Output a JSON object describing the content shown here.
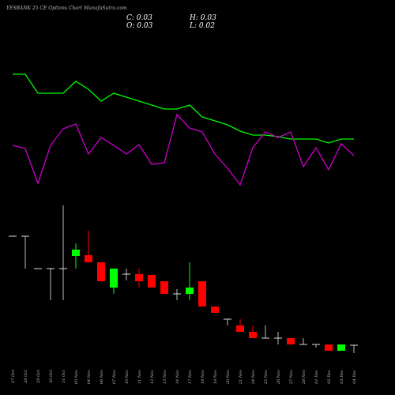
{
  "chart_data": {
    "type": "candlestick",
    "title": "YESBANK 25  CE Options  Chart MunafaSutra.com",
    "summary": [
      {
        "label": "C:",
        "value": 0.03
      },
      {
        "label": "H:",
        "value": 0.03
      },
      {
        "label": "O:",
        "value": 0.03
      },
      {
        "label": "L:",
        "value": 0.02
      }
    ],
    "x": [
      "27 Oct",
      "28 Oct",
      "29 Oct",
      "30 Oct",
      "31 Oct",
      "03 Nov",
      "04 Nov",
      "06 Nov",
      "07 Nov",
      "10 Nov",
      "11 Nov",
      "12 Nov",
      "13 Nov",
      "14 Nov",
      "17 Nov",
      "18 Nov",
      "19 Nov",
      "20 Nov",
      "21 Nov",
      "24 Nov",
      "25 Nov",
      "26 Nov",
      "27 Nov",
      "28 Nov",
      "01 Dec",
      "02 Dec",
      "03 Dec",
      "04 Dec"
    ],
    "open": [
      0.168,
      0.168,
      0.127,
      0.127,
      0.127,
      0.143,
      0.144,
      0.135,
      0.103,
      0.12,
      0.12,
      0.119,
      0.111,
      0.095,
      0.095,
      0.111,
      0.079,
      0.063,
      0.055,
      0.047,
      0.039,
      0.039,
      0.039,
      0.031,
      0.031,
      0.031,
      0.023,
      0.03
    ],
    "high": [
      0.168,
      0.168,
      0.127,
      0.127,
      0.207,
      0.159,
      0.175,
      0.135,
      0.127,
      0.127,
      0.127,
      0.119,
      0.111,
      0.101,
      0.135,
      0.111,
      0.079,
      0.063,
      0.063,
      0.055,
      0.055,
      0.047,
      0.039,
      0.039,
      0.031,
      0.031,
      0.031,
      0.03
    ],
    "low": [
      0.168,
      0.127,
      0.127,
      0.087,
      0.087,
      0.127,
      0.135,
      0.111,
      0.095,
      0.112,
      0.103,
      0.103,
      0.095,
      0.087,
      0.087,
      0.079,
      0.071,
      0.055,
      0.047,
      0.039,
      0.039,
      0.031,
      0.031,
      0.031,
      0.027,
      0.023,
      0.023,
      0.02
    ],
    "close": [
      0.168,
      0.168,
      0.127,
      0.127,
      0.127,
      0.151,
      0.135,
      0.111,
      0.127,
      0.12,
      0.111,
      0.103,
      0.095,
      0.095,
      0.103,
      0.079,
      0.071,
      0.063,
      0.047,
      0.039,
      0.039,
      0.039,
      0.031,
      0.031,
      0.031,
      0.023,
      0.031,
      0.03
    ],
    "up_color": "#00ff00",
    "down_color": "#ff0000",
    "flat_color": "#dddddd",
    "series": [
      {
        "color": "#00ff00",
        "values": [
          0.373,
          0.373,
          0.349,
          0.349,
          0.349,
          0.364,
          0.354,
          0.339,
          0.349,
          0.344,
          0.339,
          0.334,
          0.329,
          0.329,
          0.334,
          0.319,
          0.314,
          0.309,
          0.301,
          0.296,
          0.296,
          0.294,
          0.291,
          0.291,
          0.291,
          0.286,
          0.291,
          0.291
        ]
      },
      {
        "color": "#cc00cc",
        "values": [
          0.283,
          0.279,
          0.235,
          0.283,
          0.304,
          0.31,
          0.272,
          0.293,
          0.283,
          0.272,
          0.284,
          0.259,
          0.261,
          0.322,
          0.305,
          0.3,
          0.272,
          0.254,
          0.233,
          0.28,
          0.3,
          0.293,
          0.3,
          0.256,
          0.28,
          0.252,
          0.285,
          0.27
        ]
      }
    ]
  }
}
